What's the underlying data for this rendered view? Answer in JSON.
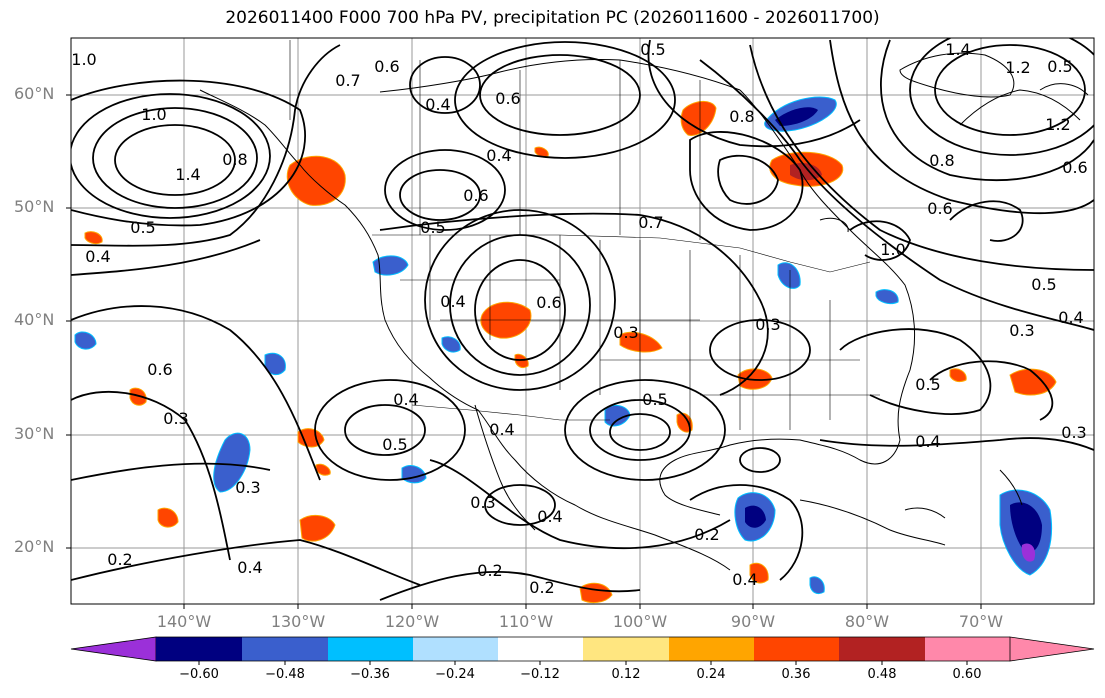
{
  "title": "2026011400 F000 700 hPa PV, precipitation PC (2026011600 - 2026011700)",
  "latitude_labels": [
    "60°N",
    "50°N",
    "40°N",
    "30°N",
    "20°N"
  ],
  "longitude_labels": [
    "140°W",
    "130°W",
    "120°W",
    "110°W",
    "100°W",
    "90°W",
    "80°W",
    "70°W"
  ],
  "contour_labels": [
    "1.0",
    "0.6",
    "0.7",
    "0.5",
    "0.4",
    "0.6",
    "0.8",
    "1.2",
    "1.4",
    "0.5",
    "1.4",
    "1.0",
    "0.8",
    "0.5",
    "0.4",
    "0.4",
    "0.6",
    "0.5",
    "0.7",
    "0.4",
    "0.6",
    "0.3",
    "0.6",
    "0.3",
    "0.4",
    "0.5",
    "0.5",
    "0.4",
    "0.3",
    "0.3",
    "0.4",
    "0.4",
    "0.3",
    "0.2",
    "0.2",
    "0.2",
    "0.2",
    "0.4",
    "0.5",
    "1.2",
    "1.0",
    "0.8",
    "0.6",
    "0.5",
    "0.4",
    "0.3",
    "0.3",
    "0.6",
    "0.4"
  ],
  "colorbar": {
    "ticks": [
      "−0.60",
      "−0.48",
      "−0.36",
      "−0.24",
      "−0.12",
      "0.12",
      "0.24",
      "0.36",
      "0.48",
      "0.60"
    ],
    "colors": [
      "#9b30d9",
      "#000080",
      "#3a5fcd",
      "#00bfff",
      "#b0e0ff",
      "#ffffff",
      "#ffe680",
      "#ffa500",
      "#ff4500",
      "#b22222",
      "#ff88aa"
    ]
  }
}
